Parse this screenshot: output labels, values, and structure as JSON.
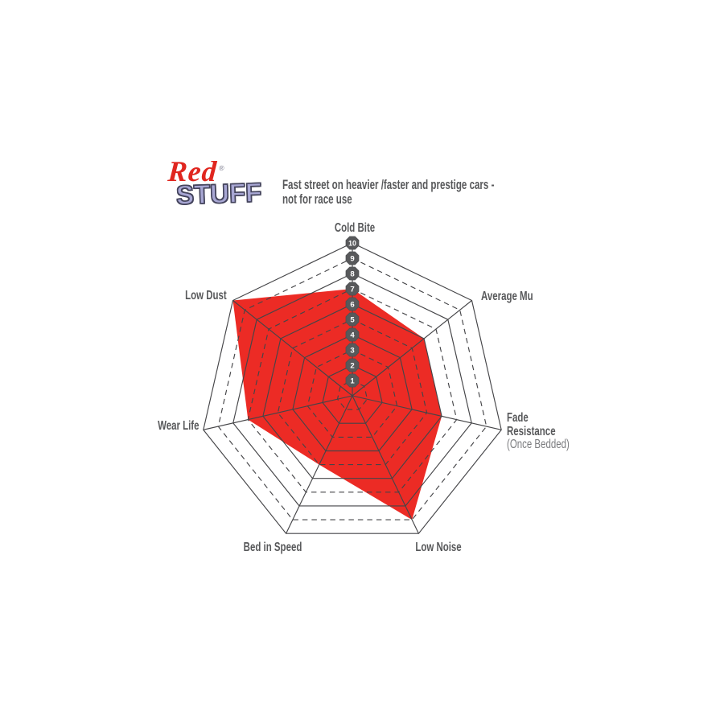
{
  "logo": {
    "word_red": "Red",
    "word_stuff": "STUFF",
    "registered": "®"
  },
  "header": {
    "line1": "Fast street on heavier /faster and prestige cars -",
    "line2": "not for race use"
  },
  "chart_data": {
    "type": "radar",
    "categories": [
      "Cold Bite",
      "Average Mu",
      "Fade Resistance (Once Bedded)",
      "Low Noise",
      "Bed in Speed",
      "Wear Life",
      "Low Dust"
    ],
    "values": [
      7,
      6,
      6,
      9,
      5,
      7,
      10
    ],
    "scale_min": 0,
    "scale_max": 10,
    "scale_ticks": [
      1,
      2,
      3,
      4,
      5,
      6,
      7,
      8,
      9,
      10
    ],
    "grid": {
      "rings": 10,
      "even_ring_style": "solid",
      "odd_ring_style": "dashed",
      "shape": "heptagon"
    },
    "labels": [
      {
        "name": "cold-bite",
        "lines": [
          "Cold Bite"
        ]
      },
      {
        "name": "average-mu",
        "lines": [
          "Average Mu"
        ]
      },
      {
        "name": "fade-resistance",
        "lines": [
          "Fade",
          "Resistance"
        ],
        "sub": "(Once Bedded)"
      },
      {
        "name": "low-noise",
        "lines": [
          "Low Noise"
        ]
      },
      {
        "name": "bed-in-speed",
        "lines": [
          "Bed in Speed"
        ]
      },
      {
        "name": "wear-life",
        "lines": [
          "Wear Life"
        ]
      },
      {
        "name": "low-dust",
        "lines": [
          "Low Dust"
        ]
      }
    ],
    "colors": {
      "fill": "#EC2B25",
      "grid": "#454548",
      "badge": "#58595B",
      "badge_text": "#FFFFFF",
      "label": "#58595B",
      "sub_label": "#7B7C7F"
    }
  }
}
